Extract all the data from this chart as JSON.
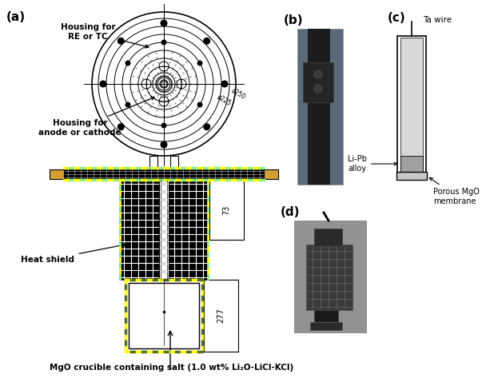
{
  "fig_width": 6.03,
  "fig_height": 4.73,
  "dpi": 100,
  "bg_color": "#ffffff",
  "panel_a_label": "(a)",
  "panel_b_label": "(b)",
  "panel_c_label": "(c)",
  "panel_d_label": "(d)",
  "annotations": {
    "housing_re_tc": "Housing for\nRE or TC",
    "housing_anode": "Housing for\nanode or cathode",
    "heat_shield": "Heat shield",
    "mgo_crucible": "MgO crucible containing salt (1.0 wt% Li₂O-LiCl-KCl)",
    "ta_wire": "Ta wire",
    "li_pb_alloy": "Li-Pb\nalloy",
    "porous_mgo": "Porous MgO\nmembrane"
  },
  "dim_73": "73",
  "dim_277": "277",
  "dim_250": "ø250",
  "dim_225": "ø225"
}
